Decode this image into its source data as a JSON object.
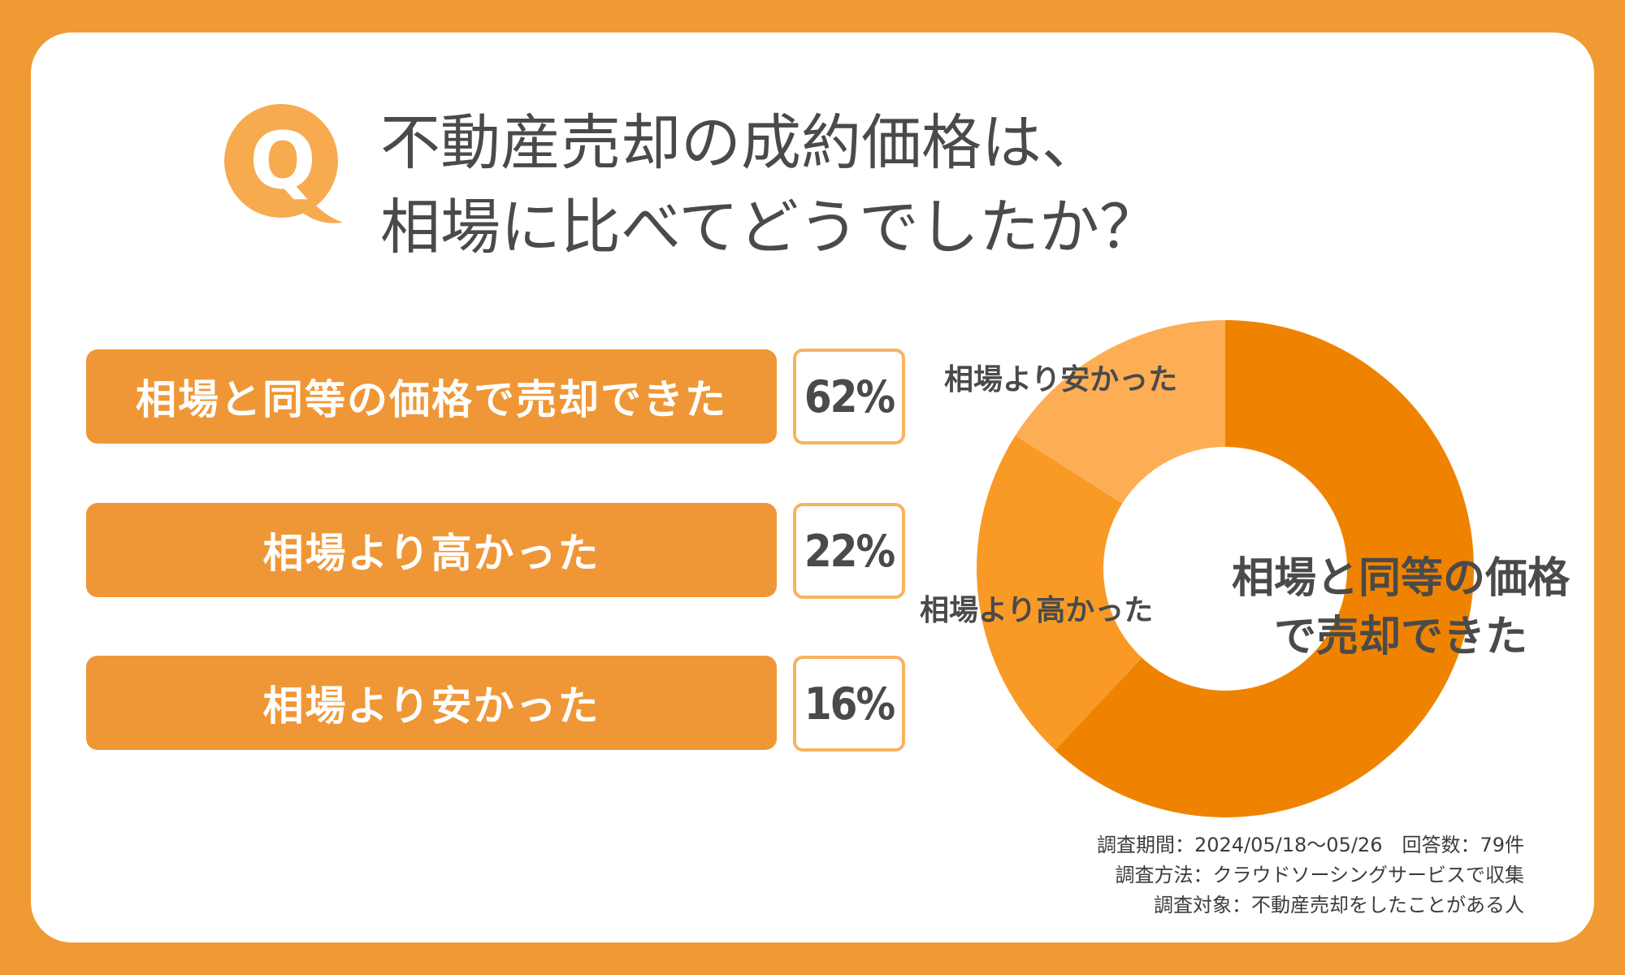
{
  "colors": {
    "background": "#f09a34",
    "card": "#ffffff",
    "bar": "#ef9736",
    "pct_border": "#f7b45f",
    "q_badge": "#f7aa4e",
    "text": "#4a4a4a"
  },
  "question": {
    "badge_letter": "Q",
    "title_line1": "不動産売却の成約価格は、",
    "title_line2": "相場に比べてどうでしたか？"
  },
  "rows": [
    {
      "label": "相場と同等の価格で売却できた",
      "percent": "62%"
    },
    {
      "label": "相場より高かった",
      "percent": "22%"
    },
    {
      "label": "相場より安かった",
      "percent": "16%"
    }
  ],
  "chart_data": {
    "type": "pie",
    "donut": true,
    "categories": [
      "相場と同等の価格で売却できた",
      "相場より高かった",
      "相場より安かった"
    ],
    "values": [
      62,
      22,
      16
    ],
    "colors": [
      "#ef8300",
      "#f99a26",
      "#fdae55"
    ],
    "start_angle_deg": 0,
    "direction": "clockwise",
    "slice_labels": {
      "equal_line1": "相場と同等の価格",
      "equal_line2": "で売却できた",
      "higher": "相場より高かった",
      "lower": "相場より安かった"
    }
  },
  "footnote": {
    "line1": "調査期間：2024/05/18〜05/26　回答数：79件",
    "line2": "調査方法：クラウドソーシングサービスで収集",
    "line3": "調査対象：不動産売却をしたことがある人"
  }
}
